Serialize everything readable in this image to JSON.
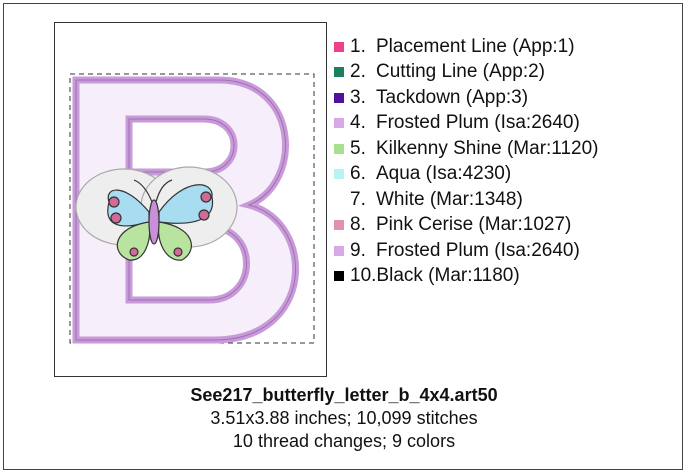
{
  "design": {
    "file_name": "See217_butterfly_letter_b_4x4.art50",
    "size_line": "3.51x3.88 inches; 10,099 stitches",
    "changes_line": "10 thread changes; 9 colors"
  },
  "threads": [
    {
      "number": "1.",
      "label": "Placement Line (App:1)",
      "color": "#f0408c"
    },
    {
      "number": "2.",
      "label": "Cutting Line (App:2)",
      "color": "#1a8060"
    },
    {
      "number": "3.",
      "label": "Tackdown (App:3)",
      "color": "#5010a0"
    },
    {
      "number": "4.",
      "label": "Frosted Plum (Isa:2640)",
      "color": "#d8a8e8"
    },
    {
      "number": "5.",
      "label": "Kilkenny Shine (Mar:1120)",
      "color": "#a8e090"
    },
    {
      "number": "6.",
      "label": "Aqua (Isa:4230)",
      "color": "#b8f4f4"
    },
    {
      "number": "7.",
      "label": "White (Mar:1348)",
      "color": "#ffffff"
    },
    {
      "number": "8.",
      "label": "Pink Cerise (Mar:1027)",
      "color": "#e090b0"
    },
    {
      "number": "9.",
      "label": "Frosted Plum (Isa:2640)",
      "color": "#d8a8e8"
    },
    {
      "number": "10.",
      "label": "Black (Mar:1180)",
      "color": "#000000"
    }
  ]
}
